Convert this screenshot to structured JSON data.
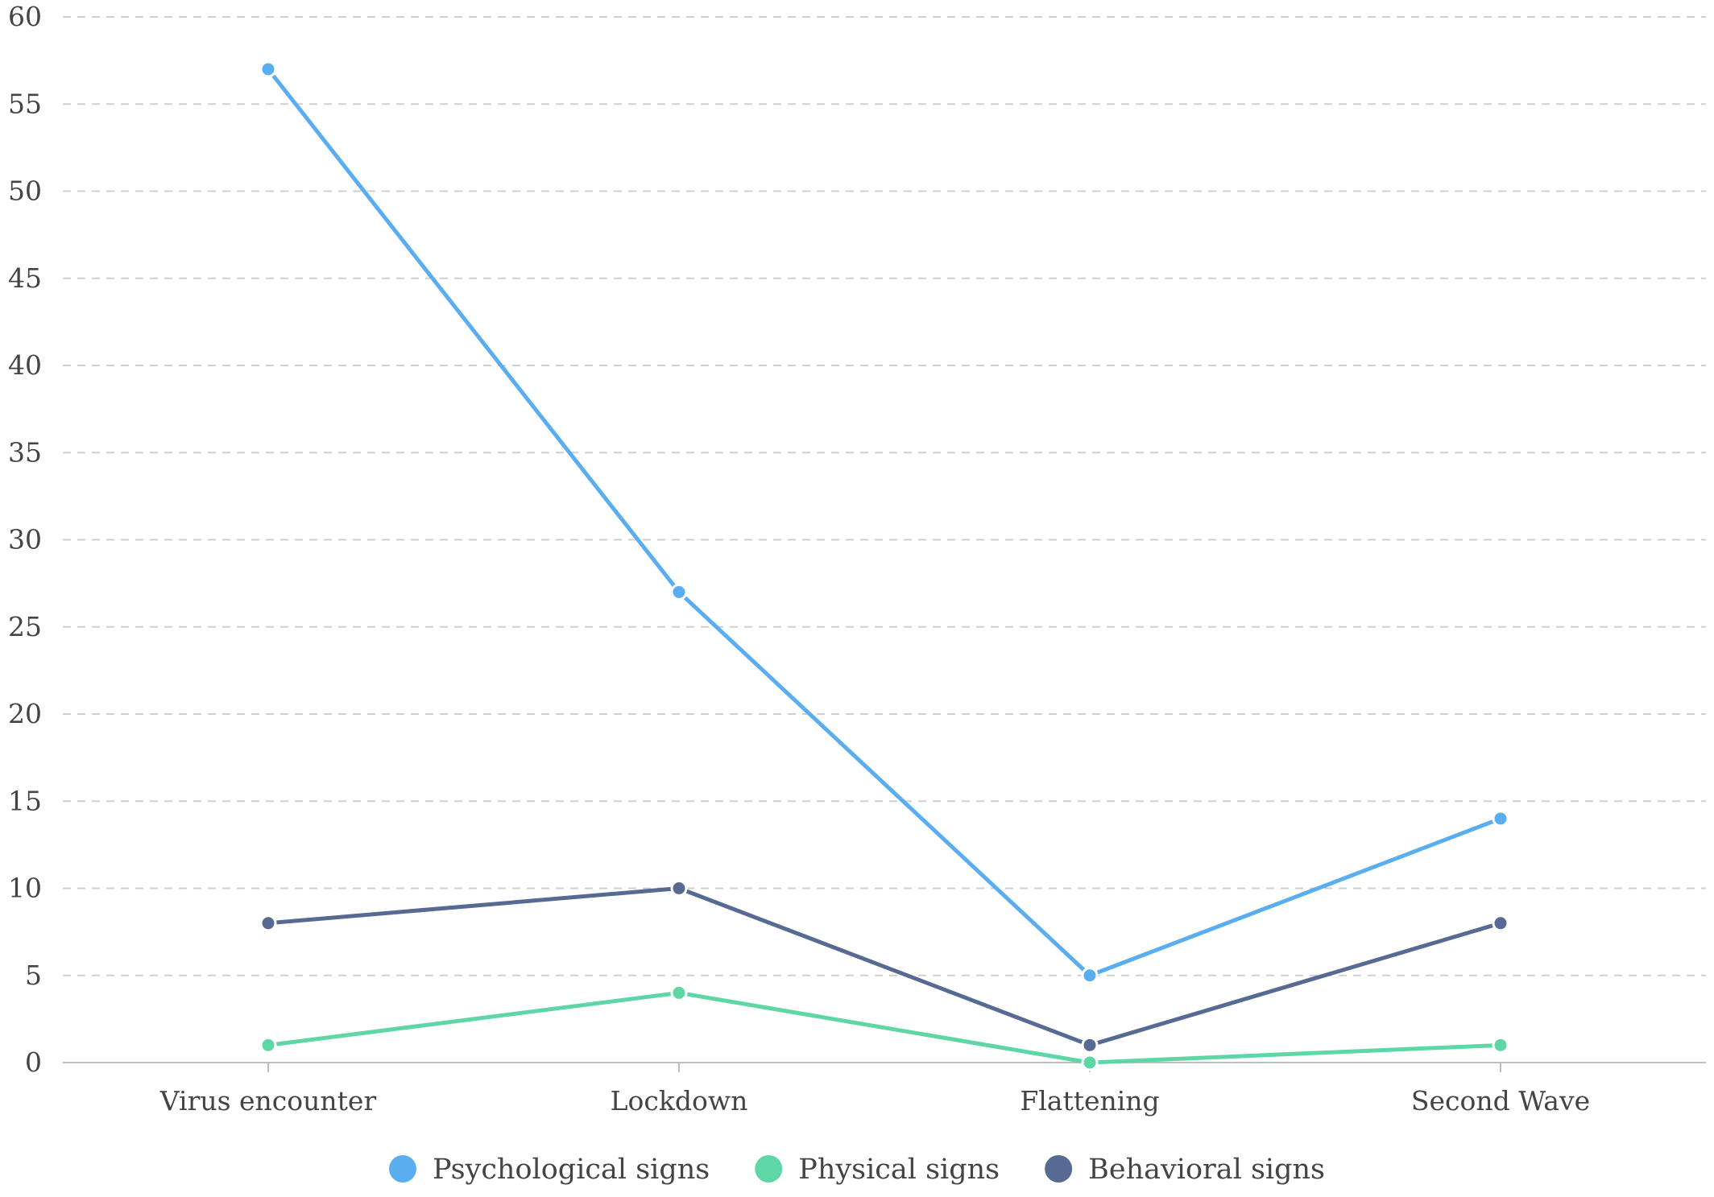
{
  "chart_data": {
    "type": "line",
    "title": "",
    "xlabel": "",
    "ylabel": "",
    "categories": [
      "Virus encounter",
      "Lockdown",
      "Flattening",
      "Second Wave"
    ],
    "ylim": [
      0,
      60
    ],
    "yticks": [
      "0",
      "5",
      "10",
      "15",
      "20",
      "25",
      "30",
      "35",
      "40",
      "45",
      "50",
      "55",
      "60"
    ],
    "grid": true,
    "legend_position": "bottom",
    "series": [
      {
        "name": "Psychological signs",
        "color": "#5aaef0",
        "values": [
          57,
          27,
          5,
          14
        ]
      },
      {
        "name": "Physical signs",
        "color": "#5ed6a5",
        "values": [
          1,
          4,
          0,
          1
        ]
      },
      {
        "name": "Behavioral signs",
        "color": "#566a93",
        "values": [
          8,
          10,
          1,
          8
        ]
      }
    ]
  }
}
